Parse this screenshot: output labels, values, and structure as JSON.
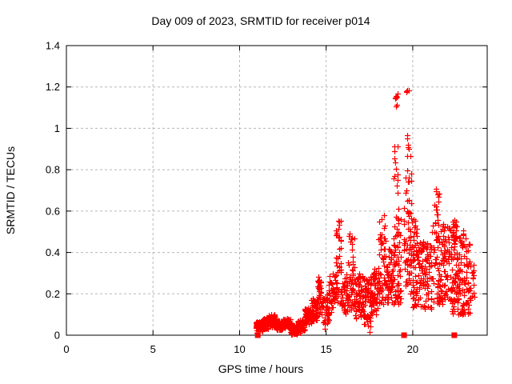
{
  "chart_data": {
    "type": "scatter",
    "title": "Day 009 of 2023, SRMTID for receiver p014",
    "xlabel": "GPS time / hours",
    "ylabel": "SRMTID / TECUs",
    "xlim": [
      0,
      24.3
    ],
    "ylim": [
      0,
      1.4
    ],
    "xticks": [
      0,
      5,
      10,
      15,
      20
    ],
    "xtick_labels": [
      "0",
      "5",
      "10",
      "15",
      "20"
    ],
    "yticks": [
      0,
      0.2,
      0.4,
      0.6,
      0.8,
      1,
      1.2,
      1.4
    ],
    "ytick_labels": [
      "0",
      "0.2",
      "0.4",
      "0.6",
      "0.8",
      "1",
      "1.2",
      "1.4"
    ],
    "grid": true,
    "legend": "none",
    "marker_color": "#ff0000",
    "grid_color": "#b8b8b8",
    "border_color": "#000000",
    "seed": 20230009,
    "series": [
      {
        "name": "srmtid-values",
        "marker": "plus",
        "clusters": [
          {
            "x": [
              10.95,
              11.3
            ],
            "y": [
              0.02,
              0.065
            ],
            "n": 70
          },
          {
            "x": [
              11.3,
              11.65
            ],
            "y": [
              0.03,
              0.08
            ],
            "n": 70
          },
          {
            "x": [
              11.65,
              12.1
            ],
            "y": [
              0.04,
              0.1
            ],
            "n": 85
          },
          {
            "x": [
              12.1,
              12.5
            ],
            "y": [
              0.025,
              0.07
            ],
            "n": 80
          },
          {
            "x": [
              12.5,
              12.95
            ],
            "y": [
              0.035,
              0.08
            ],
            "n": 85
          },
          {
            "x": [
              12.95,
              13.35
            ],
            "y": [
              0.005,
              0.05
            ],
            "n": 85
          },
          {
            "x": [
              13.35,
              13.75
            ],
            "y": [
              0.02,
              0.075
            ],
            "n": 70
          },
          {
            "x": [
              13.75,
              14.15
            ],
            "y": [
              0.05,
              0.13
            ],
            "n": 65
          },
          {
            "x": [
              14.15,
              14.5
            ],
            "y": [
              0.07,
              0.18
            ],
            "n": 45
          },
          {
            "x": [
              14.5,
              14.8
            ],
            "y": [
              0.1,
              0.29
            ],
            "n": 40,
            "p": 1.4
          },
          {
            "x": [
              14.8,
              15.15
            ],
            "y": [
              0.05,
              0.2
            ],
            "n": 40
          },
          {
            "x": [
              15.15,
              15.55
            ],
            "y": [
              0.1,
              0.3
            ],
            "n": 45
          },
          {
            "x": [
              15.55,
              15.9
            ],
            "y": [
              0.15,
              0.56
            ],
            "n": 45,
            "p": 1.7
          },
          {
            "x": [
              15.9,
              16.25
            ],
            "y": [
              0.1,
              0.3
            ],
            "n": 40
          },
          {
            "x": [
              16.25,
              16.65
            ],
            "y": [
              0.12,
              0.5
            ],
            "n": 50,
            "p": 1.6
          },
          {
            "x": [
              16.65,
              17.1
            ],
            "y": [
              0.08,
              0.3
            ],
            "n": 60
          },
          {
            "x": [
              17.1,
              17.55
            ],
            "y": [
              0.04,
              0.28
            ],
            "n": 60
          },
          {
            "x": [
              17.55,
              18.0
            ],
            "y": [
              0.1,
              0.32
            ],
            "n": 60
          },
          {
            "x": [
              18.0,
              18.45
            ],
            "y": [
              0.15,
              0.47
            ],
            "n": 55,
            "p": 1.3
          },
          {
            "x": [
              18.05,
              18.4
            ],
            "y": [
              0.45,
              0.58
            ],
            "n": 8
          },
          {
            "x": [
              18.45,
              18.85
            ],
            "y": [
              0.15,
              0.42
            ],
            "n": 50
          },
          {
            "x": [
              18.85,
              19.3
            ],
            "y": [
              0.15,
              0.62
            ],
            "n": 70,
            "p": 1.4
          },
          {
            "x": [
              18.9,
              19.15
            ],
            "y": [
              0.65,
              0.92
            ],
            "n": 12
          },
          {
            "x": [
              18.95,
              19.15
            ],
            "y": [
              1.05,
              1.17
            ],
            "n": 8
          },
          {
            "x": [
              19.5,
              19.95
            ],
            "y": [
              0.2,
              0.62
            ],
            "n": 60,
            "p": 1.3
          },
          {
            "x": [
              19.55,
              19.9
            ],
            "y": [
              0.63,
              0.88
            ],
            "n": 14
          },
          {
            "x": [
              19.6,
              19.8
            ],
            "y": [
              0.9,
              1.0
            ],
            "n": 5
          },
          {
            "x": [
              19.62,
              19.78
            ],
            "y": [
              1.17,
              1.22
            ],
            "n": 4
          },
          {
            "x": [
              19.95,
              20.5
            ],
            "y": [
              0.13,
              0.45
            ],
            "n": 70
          },
          {
            "x": [
              20.0,
              20.25
            ],
            "y": [
              0.45,
              0.58
            ],
            "n": 10
          },
          {
            "x": [
              20.5,
              21.1
            ],
            "y": [
              0.12,
              0.45
            ],
            "n": 70
          },
          {
            "x": [
              20.55,
              20.9
            ],
            "y": [
              0.42,
              0.48
            ],
            "n": 5
          },
          {
            "x": [
              21.1,
              21.65
            ],
            "y": [
              0.15,
              0.55
            ],
            "n": 60,
            "p": 1.3
          },
          {
            "x": [
              21.2,
              21.55
            ],
            "y": [
              0.55,
              0.73
            ],
            "n": 14
          },
          {
            "x": [
              21.65,
              22.15
            ],
            "y": [
              0.15,
              0.55
            ],
            "n": 60
          },
          {
            "x": [
              22.15,
              22.75
            ],
            "y": [
              0.1,
              0.54
            ],
            "n": 90,
            "p": 1.2
          },
          {
            "x": [
              22.3,
              22.55
            ],
            "y": [
              0.44,
              0.56
            ],
            "n": 18
          },
          {
            "x": [
              22.75,
              23.3
            ],
            "y": [
              0.1,
              0.45
            ],
            "n": 70,
            "p": 1.2
          },
          {
            "x": [
              22.8,
              23.05
            ],
            "y": [
              0.45,
              0.52
            ],
            "n": 6
          },
          {
            "x": [
              23.3,
              23.55
            ],
            "y": [
              0.15,
              0.35
            ],
            "n": 15
          }
        ],
        "points": [
          [
            11.0,
            0.012
          ],
          [
            13.05,
            0.006
          ],
          [
            13.5,
            0.012
          ],
          [
            14.9,
            0.03
          ],
          [
            17.5,
            0.015
          ],
          [
            19.9,
            0.64
          ]
        ]
      },
      {
        "name": "time-flags",
        "marker": "filled-square",
        "points": [
          [
            11.05,
            0
          ],
          [
            19.5,
            0
          ],
          [
            22.4,
            0
          ]
        ]
      }
    ]
  }
}
